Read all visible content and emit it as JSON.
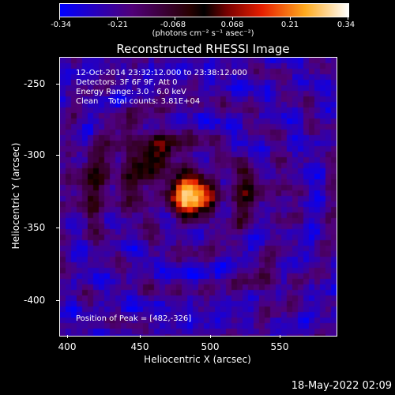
{
  "colorbar": {
    "ticks": [
      "-0.34",
      "-0.21",
      "-0.068",
      "0.068",
      "0.21",
      "0.34"
    ],
    "units": "(photons cm⁻² s⁻¹ asec⁻²)"
  },
  "title": "Reconstructed RHESSI Image",
  "info": {
    "time_range": "12-Oct-2014 23:32:12.000 to 23:38:12.000",
    "detectors": "Detectors: 3F 6F 9F, Att 0",
    "energy": "Energy Range: 3.0 - 6.0 keV",
    "clean": "Clean    Total counts: 3.81E+04",
    "peak": "Position of Peak = [482,-326]"
  },
  "x_ticks": [
    "400",
    "450",
    "500",
    "550"
  ],
  "y_ticks": [
    "-250",
    "-300",
    "-350",
    "-400"
  ],
  "xlabel": "Heliocentric X (arcsec)",
  "ylabel": "Heliocentric Y (arcsec)",
  "timestamp": "18-May-2022 02:09",
  "colors": {
    "background": "#000000",
    "axis": "#ffffff"
  },
  "chart_data": {
    "type": "heatmap",
    "xlim": [
      393,
      585
    ],
    "ylim": [
      -425,
      -232
    ],
    "vlim": [
      -0.34,
      0.34
    ],
    "peak": [
      482,
      -326
    ]
  }
}
